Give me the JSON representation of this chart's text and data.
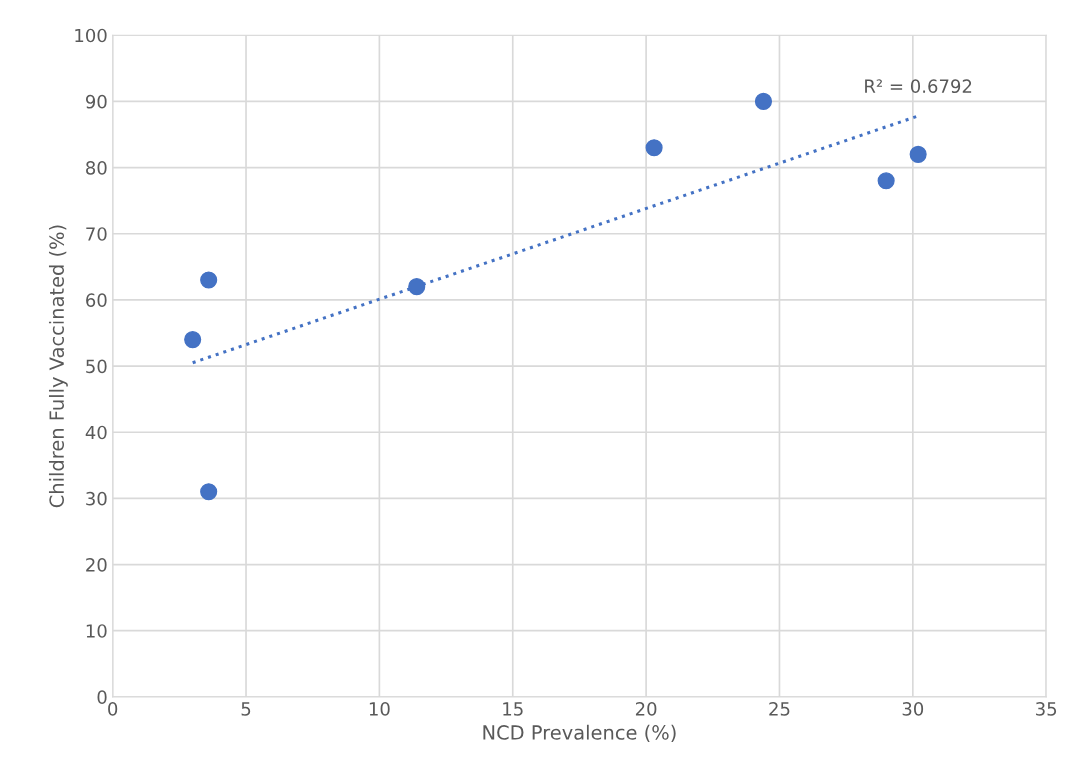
{
  "chart_data": {
    "type": "scatter",
    "xlabel": "NCD Prevalence (%)",
    "ylabel": "Children Fully Vaccinated (%)",
    "xlim": [
      0,
      35
    ],
    "xticks": [
      0,
      5,
      10,
      15,
      20,
      25,
      30,
      35
    ],
    "ylim": [
      0,
      100
    ],
    "yticks": [
      0,
      10,
      20,
      30,
      40,
      50,
      60,
      70,
      80,
      90,
      100
    ],
    "grid": true,
    "legend": false,
    "series": [
      {
        "marker": "circle",
        "color": "#4472c4",
        "x": [
          3.0,
          3.6,
          3.6,
          11.4,
          20.3,
          24.4,
          29.0,
          30.2
        ],
        "values": [
          54,
          63,
          31,
          62,
          83,
          90,
          78,
          82
        ]
      },
      {
        "type": "line",
        "marker": "none",
        "color": "#4472c4",
        "line_style": "dotted",
        "x": [
          3.0,
          30.2
        ],
        "values": [
          50.5,
          87.8
        ]
      }
    ],
    "annotations": [
      {
        "text": "R² = 0.6792",
        "x": 30.2,
        "y": 87.8
      }
    ]
  }
}
